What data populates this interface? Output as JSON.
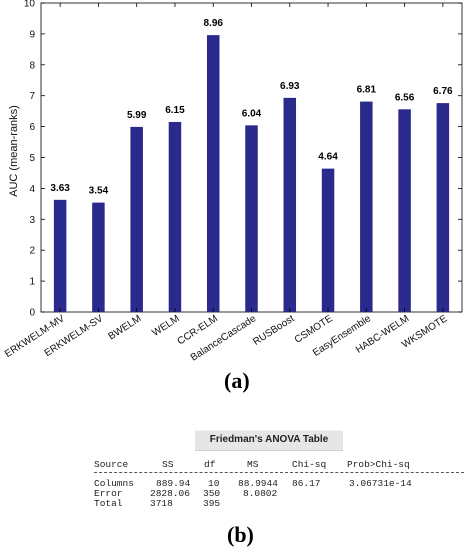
{
  "chart_data": {
    "type": "bar",
    "categories": [
      "ERKWELM-MV",
      "ERKWELM-SV",
      "BWELM",
      "WELM",
      "CCR-ELM",
      "BalanceCascade",
      "RUSBoost",
      "CSMOTE",
      "EasyEnsemble",
      "HABC-WELM",
      "WKSMOTE"
    ],
    "values": [
      3.63,
      3.54,
      5.99,
      6.15,
      8.96,
      6.04,
      6.93,
      4.64,
      6.81,
      6.56,
      6.76
    ],
    "data_labels": [
      "3.63",
      "3.54",
      "5.99",
      "6.15",
      "8.96",
      "6.04",
      "6.93",
      "4.64",
      "6.81",
      "6.56",
      "6.76"
    ],
    "ylabel": "AUC (mean-ranks)",
    "xlabel": "",
    "title": "",
    "ylim": [
      0,
      10
    ],
    "yticks": [
      "0",
      "1",
      "2",
      "3",
      "4",
      "5",
      "6",
      "7",
      "8",
      "9",
      "10"
    ],
    "grid": false,
    "bar_color": "#2a2a8c"
  },
  "panel_labels": {
    "a": "(a)",
    "b": "(b)"
  },
  "anova": {
    "title": "Friedman's ANOVA Table",
    "headers": [
      "Source",
      "SS",
      "df",
      "MS",
      "Chi-sq",
      "Prob>Chi-sq"
    ],
    "separator": "-----------------------------------------------------------",
    "rows": [
      [
        "Columns",
        "889.94",
        "10",
        "88.9944",
        "86.17",
        "3.06731e-14"
      ],
      [
        "Error",
        "2828.06",
        "350",
        "8.0802",
        "",
        ""
      ],
      [
        "Total",
        "3718",
        "395",
        "",
        "",
        ""
      ]
    ]
  }
}
